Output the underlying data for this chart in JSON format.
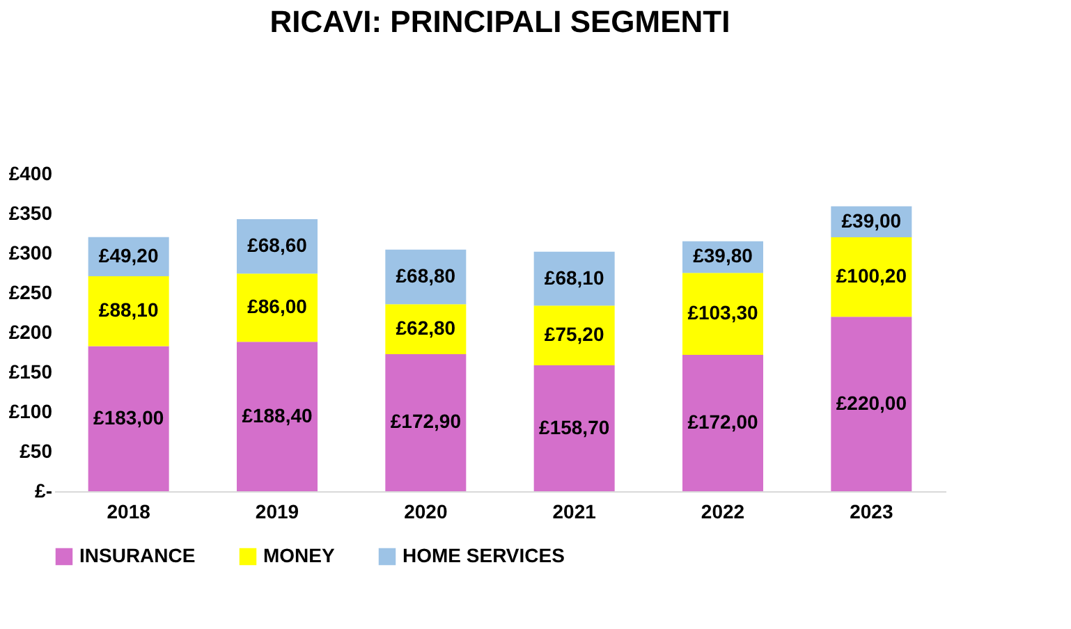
{
  "chart_data": {
    "type": "bar",
    "title": "RICAVI: PRINCIPALI SEGMENTI",
    "stacked": true,
    "categories": [
      "2018",
      "2019",
      "2020",
      "2021",
      "2022",
      "2023"
    ],
    "series": [
      {
        "name": "INSURANCE",
        "color": "#d46fcb",
        "values": [
          183.0,
          188.4,
          172.9,
          158.7,
          172.0,
          220.0
        ],
        "value_labels": [
          "£183,00",
          "£188,40",
          "£172,90",
          "£158,70",
          "£172,00",
          "£220,00"
        ]
      },
      {
        "name": "MONEY",
        "color": "#ffff00",
        "values": [
          88.1,
          86.0,
          62.8,
          75.2,
          103.3,
          100.2
        ],
        "value_labels": [
          "£88,10",
          "£86,00",
          "£62,80",
          "£75,20",
          "£103,30",
          "£100,20"
        ]
      },
      {
        "name": "HOME SERVICES",
        "color": "#9dc3e6",
        "values": [
          49.2,
          68.6,
          68.8,
          68.1,
          39.8,
          39.0
        ],
        "value_labels": [
          "£49,20",
          "£68,60",
          "£68,80",
          "£68,10",
          "£39,80",
          "£39,00"
        ]
      }
    ],
    "ylim": [
      0,
      400
    ],
    "yticks": [
      {
        "value": 0,
        "label": "£-"
      },
      {
        "value": 50,
        "label": "£50"
      },
      {
        "value": 100,
        "label": "£100"
      },
      {
        "value": 150,
        "label": "£150"
      },
      {
        "value": 200,
        "label": "£200"
      },
      {
        "value": 250,
        "label": "£250"
      },
      {
        "value": 300,
        "label": "£300"
      },
      {
        "value": 350,
        "label": "£350"
      },
      {
        "value": 400,
        "label": "£400"
      }
    ],
    "grid": false,
    "legend": "bottom"
  }
}
